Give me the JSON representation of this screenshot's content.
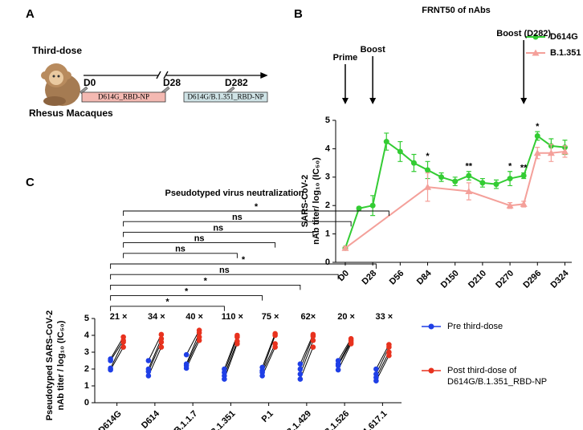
{
  "panel_a": {
    "label": "A",
    "heading": "Third-dose",
    "subject": "Rhesus Macaques",
    "timepoints": [
      "D0",
      "D28",
      "D282"
    ],
    "immunogens": [
      "D614G_RBD-NP",
      "D614G/B.1.351_RBD-NP"
    ]
  },
  "chart_data": [
    {
      "type": "line",
      "panel": "B",
      "title": "FRNT50 of nAbs",
      "ylabel": [
        "SARS-CoV-2",
        "nAb titer/ log₁₀ (IC₅₀)"
      ],
      "xlim": [
        -0.7,
        16.5
      ],
      "xticks": [
        {
          "value": 0,
          "label": "D0"
        },
        {
          "value": 2,
          "label": "D28"
        },
        {
          "value": 4,
          "label": "D56"
        },
        {
          "value": 6,
          "label": "D84"
        },
        {
          "value": 8,
          "label": "D150"
        },
        {
          "value": 10,
          "label": "D210"
        },
        {
          "value": 12,
          "label": "D270"
        },
        {
          "value": 14,
          "label": "D296"
        },
        {
          "value": 16,
          "label": "D324"
        }
      ],
      "ylim": [
        0,
        5
      ],
      "yticks": [
        0,
        1,
        2,
        3,
        4,
        5
      ],
      "legend": "upper right",
      "series": [
        {
          "name": "D614G",
          "color": "#33cc33",
          "marker": "circle",
          "x": [
            0,
            1,
            2,
            3,
            4,
            5,
            6,
            7,
            8,
            9,
            10,
            11,
            12,
            13,
            14,
            15,
            16
          ],
          "values": [
            0.5,
            1.9,
            2.0,
            4.25,
            3.9,
            3.5,
            3.25,
            3.0,
            2.85,
            3.05,
            2.8,
            2.75,
            2.95,
            3.05,
            4.45,
            4.1,
            4.05
          ],
          "errors": [
            0.05,
            0.05,
            0.35,
            0.3,
            0.35,
            0.3,
            0.3,
            0.15,
            0.15,
            0.15,
            0.15,
            0.15,
            0.25,
            0.1,
            0.15,
            0.25,
            0.25
          ]
        },
        {
          "name": "B.1.351",
          "color": "#f4a09a",
          "marker": "triangle",
          "x": [
            0,
            6,
            9,
            12,
            13,
            14,
            15,
            16
          ],
          "values": [
            0.5,
            2.65,
            2.5,
            2.0,
            2.05,
            3.85,
            3.85,
            3.9
          ],
          "errors": [
            0.05,
            0.5,
            0.3,
            0.1,
            0.1,
            0.2,
            0.3,
            0.2
          ]
        }
      ],
      "arrows": [
        {
          "label": "Prime",
          "x": 0
        },
        {
          "label": "Boost",
          "x": 2
        },
        {
          "label": "Boost (D282)",
          "x": 13
        }
      ],
      "significance": [
        {
          "x": 6,
          "label": "*"
        },
        {
          "x": 9,
          "label": "**"
        },
        {
          "x": 12,
          "label": "*"
        },
        {
          "x": 13,
          "label": "**"
        },
        {
          "x": 14,
          "label": "*"
        }
      ]
    },
    {
      "type": "dotplot",
      "panel": "C",
      "title": "Pseudotyped virus neutralization",
      "ylabel": [
        "Pseudotyped SARS-CoV-2",
        "nAb titer / log₁₀ (IC₅₀)"
      ],
      "categories": [
        "D614G",
        "D614",
        "B.1.1.7",
        "B.1.351",
        "P.1",
        "B.1.429",
        "B.1.526",
        "B.1.617.1"
      ],
      "fold_labels": [
        "21 ×",
        "34 ×",
        "40 ×",
        "110 ×",
        "75 ×",
        "62×",
        "20 ×",
        "33 ×"
      ],
      "ylim": [
        0,
        5
      ],
      "yticks": [
        0,
        1,
        2,
        3,
        4,
        5
      ],
      "legend": "right",
      "series": [
        {
          "name": "Pre third-dose",
          "color": "#1f3fe6",
          "values": [
            [
              2.6,
              2.5,
              2.05,
              1.95
            ],
            [
              2.5,
              2.0,
              1.85,
              1.6
            ],
            [
              2.85,
              2.3,
              2.2,
              2.05
            ],
            [
              2.0,
              1.8,
              1.6,
              1.4
            ],
            [
              2.1,
              1.9,
              1.8,
              1.6
            ],
            [
              2.3,
              2.0,
              1.7,
              1.4
            ],
            [
              2.5,
              2.3,
              2.2,
              1.95
            ],
            [
              2.0,
              1.7,
              1.5,
              1.3
            ]
          ]
        },
        {
          "name": "Post third-dose of D614G/B.1.351_RBD-NP",
          "color": "#e8321e",
          "values": [
            [
              3.9,
              3.7,
              3.6,
              3.3
            ],
            [
              4.05,
              3.8,
              3.6,
              3.3
            ],
            [
              4.3,
              4.15,
              3.9,
              3.7
            ],
            [
              4.0,
              3.9,
              3.65,
              3.5
            ],
            [
              4.1,
              4.0,
              3.5,
              3.3
            ],
            [
              4.05,
              3.95,
              3.7,
              3.3
            ],
            [
              3.8,
              3.7,
              3.6,
              3.5
            ],
            [
              3.45,
              3.3,
              3.0,
              2.8
            ]
          ]
        }
      ],
      "comparisons": [
        {
          "series": 1,
          "from": 0,
          "to": 7,
          "label": "*"
        },
        {
          "series": 1,
          "from": 0,
          "to": 6,
          "label": "ns"
        },
        {
          "series": 1,
          "from": 0,
          "to": 5,
          "label": "ns"
        },
        {
          "series": 1,
          "from": 0,
          "to": 4,
          "label": "ns"
        },
        {
          "series": 1,
          "from": 0,
          "to": 3,
          "label": "ns"
        },
        {
          "series": 0,
          "from": 0,
          "to": 7,
          "label": "*"
        },
        {
          "series": 0,
          "from": 0,
          "to": 6,
          "label": "ns"
        },
        {
          "series": 0,
          "from": 0,
          "to": 5,
          "label": "*"
        },
        {
          "series": 0,
          "from": 0,
          "to": 4,
          "label": "*"
        },
        {
          "series": 0,
          "from": 0,
          "to": 3,
          "label": "*"
        }
      ]
    }
  ]
}
